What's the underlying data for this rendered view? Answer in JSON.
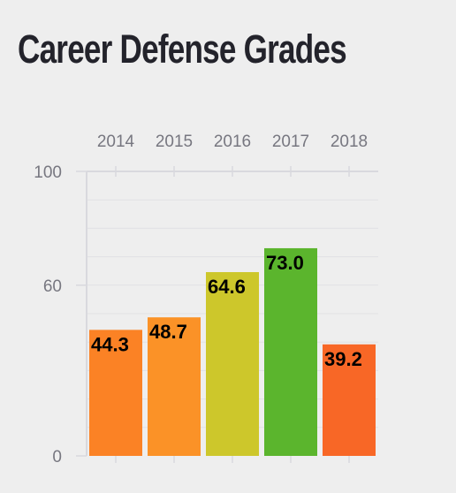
{
  "title": "Career Defense Grades",
  "chart_data": {
    "type": "bar",
    "title": "Career Defense Grades",
    "categories": [
      "2014",
      "2015",
      "2016",
      "2017",
      "2018"
    ],
    "values": [
      44.3,
      48.7,
      64.6,
      73.0,
      39.2
    ],
    "value_labels": [
      "44.3",
      "48.7",
      "64.6",
      "73.0",
      "39.2"
    ],
    "bar_colors": [
      "#fb8225",
      "#fb9227",
      "#cdc72b",
      "#5bb52d",
      "#f86726"
    ],
    "ylim": [
      0,
      100
    ],
    "yticks": [
      0,
      60,
      100
    ],
    "ytick_labels": [
      "0",
      "60",
      "100"
    ],
    "category_axis_position": "top",
    "grid": true,
    "xlabel": "",
    "ylabel": ""
  }
}
